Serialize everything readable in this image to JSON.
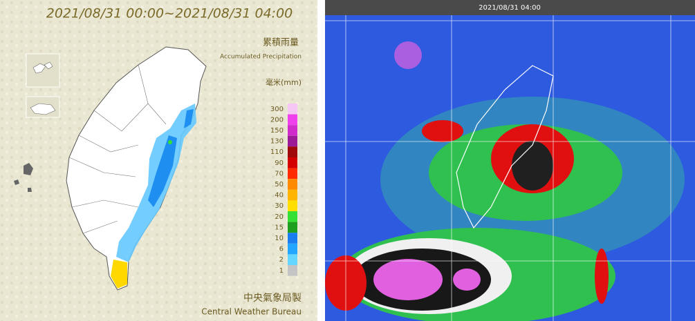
{
  "rain_map": {
    "title": "2021/08/31 00:00~2021/08/31 04:00",
    "legend_title_zh": "累積雨量",
    "legend_title_en": "Accumulated Precipitation",
    "unit": "毫米(mm)",
    "legend": [
      {
        "label": "300",
        "color": "#f6c6f4"
      },
      {
        "label": "200",
        "color": "#f040ee"
      },
      {
        "label": "150",
        "color": "#d02ccc"
      },
      {
        "label": "130",
        "color": "#9c1c98"
      },
      {
        "label": "110",
        "color": "#a00a0a"
      },
      {
        "label": "90",
        "color": "#d40000"
      },
      {
        "label": "70",
        "color": "#ff2a00"
      },
      {
        "label": "50",
        "color": "#ff8a00"
      },
      {
        "label": "40",
        "color": "#ffb400"
      },
      {
        "label": "30",
        "color": "#ffde00"
      },
      {
        "label": "20",
        "color": "#34e034"
      },
      {
        "label": "15",
        "color": "#1ea01e"
      },
      {
        "label": "10",
        "color": "#1a7ef0"
      },
      {
        "label": "6",
        "color": "#22a6ff"
      },
      {
        "label": "2",
        "color": "#64d6ff"
      },
      {
        "label": "1",
        "color": "#c4c4c4"
      }
    ],
    "credit_zh": "中央氣象局製",
    "credit_en": "Central Weather Bureau"
  },
  "satellite": {
    "timestamp": "2021/08/31 04:00"
  }
}
